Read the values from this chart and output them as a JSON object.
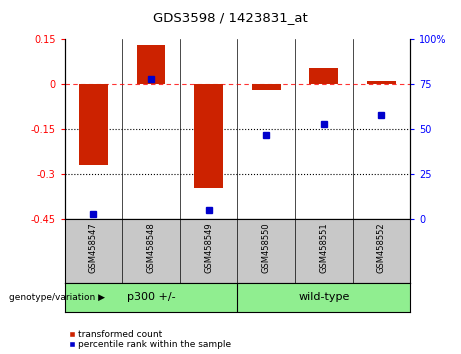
{
  "title": "GDS3598 / 1423831_at",
  "samples": [
    "GSM458547",
    "GSM458548",
    "GSM458549",
    "GSM458550",
    "GSM458551",
    "GSM458552"
  ],
  "transformed_count": [
    -0.27,
    0.13,
    -0.345,
    -0.02,
    0.055,
    0.01
  ],
  "percentile_rank": [
    3,
    78,
    5,
    47,
    53,
    58
  ],
  "bar_color": "#CC2200",
  "dot_color": "#0000CC",
  "ylim_left": [
    -0.45,
    0.15
  ],
  "ylim_right": [
    0,
    100
  ],
  "yticks_left": [
    0.15,
    0,
    -0.15,
    -0.3,
    -0.45
  ],
  "ytick_labels_left": [
    "0.15",
    "0",
    "-0.15",
    "-0.3",
    "-0.45"
  ],
  "yticks_right": [
    100,
    75,
    50,
    25,
    0
  ],
  "ytick_labels_right": [
    "100%",
    "75",
    "50",
    "25",
    "0"
  ],
  "dotted_lines": [
    -0.15,
    -0.3
  ],
  "background_color": "#ffffff",
  "label_transformed": "transformed count",
  "label_percentile": "percentile rank within the sample",
  "genotype_label": "genotype/variation",
  "group_labels": [
    "p300 +/-",
    "wild-type"
  ],
  "group_colors": [
    "#90EE90",
    "#90EE90"
  ],
  "sample_bg_color": "#C8C8C8",
  "group_separator": 2.5,
  "bar_width": 0.5
}
